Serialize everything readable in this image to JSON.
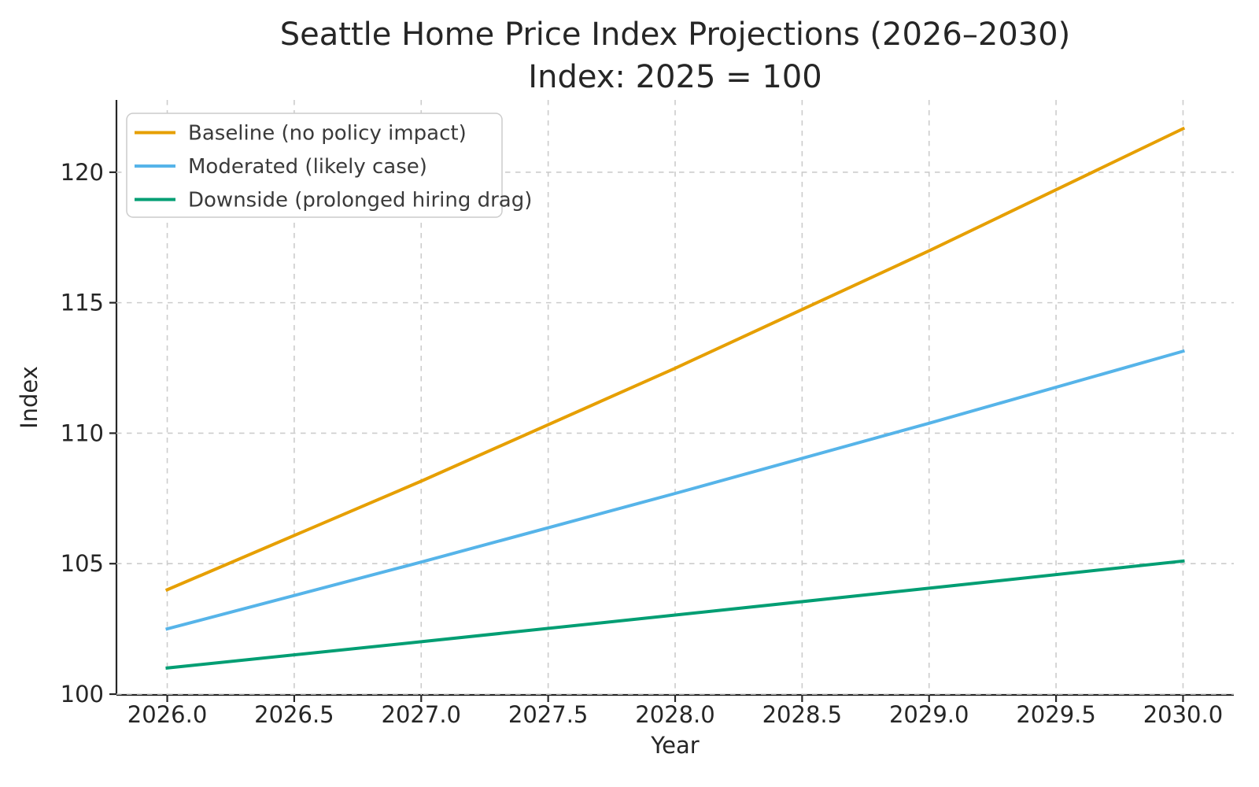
{
  "chart_data": {
    "type": "line",
    "title": "Seattle Home Price Index Projections (2026–2030)",
    "subtitle": "Index: 2025 = 100",
    "xlabel": "Year",
    "ylabel": "Index",
    "x": [
      2026,
      2027,
      2028,
      2029,
      2030
    ],
    "series": [
      {
        "name": "Baseline (no policy impact)",
        "key": "baseline",
        "color": "#E69F00",
        "values": [
          104.0,
          108.16,
          112.49,
          116.99,
          121.67
        ]
      },
      {
        "name": "Moderated (likely case)",
        "key": "moderated",
        "color": "#56B4E9",
        "values": [
          102.5,
          105.06,
          107.69,
          110.38,
          113.14
        ]
      },
      {
        "name": "Downside (prolonged hiring drag)",
        "key": "downside",
        "color": "#009E73",
        "values": [
          101.0,
          102.01,
          103.03,
          104.06,
          105.1
        ]
      }
    ],
    "xlim": [
      2025.8,
      2030.2
    ],
    "ylim": [
      99.97,
      122.77
    ],
    "xticks": {
      "values": [
        2026,
        2026.5,
        2027,
        2027.5,
        2028,
        2028.5,
        2029,
        2029.5,
        2030
      ],
      "labels": [
        "2026.0",
        "2026.5",
        "2027.0",
        "2027.5",
        "2028.0",
        "2028.5",
        "2029.0",
        "2029.5",
        "2030.0"
      ]
    },
    "yticks": {
      "values": [
        100,
        105,
        110,
        115,
        120
      ],
      "labels": [
        "100",
        "105",
        "110",
        "115",
        "120"
      ]
    },
    "grid": true,
    "legend": {
      "position": "upper-left"
    },
    "style": {
      "grid_color": "#cccccc",
      "spine_color": "#262626",
      "text_color": "#262626",
      "background": "#ffffff",
      "line_width": 4
    }
  }
}
